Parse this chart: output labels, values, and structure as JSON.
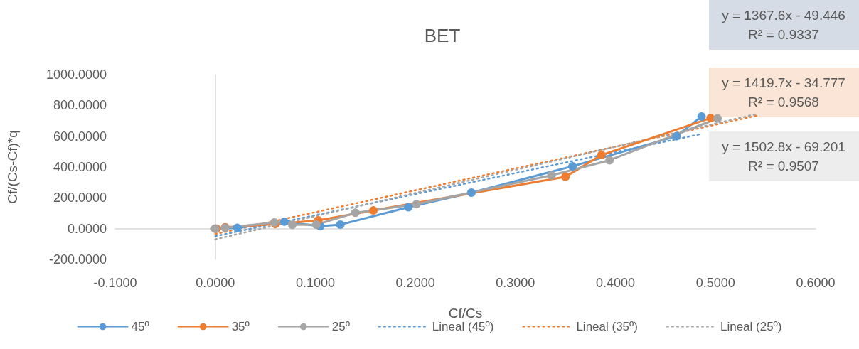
{
  "chart_data": {
    "type": "line",
    "title": "BET",
    "xlabel": "Cf/Cs",
    "ylabel": "Cf/(Cs-Cf)*q",
    "xlim": [
      -0.1,
      0.6
    ],
    "xticks": [
      {
        "value": -0.1,
        "label": "-0.1000"
      },
      {
        "value": 0,
        "label": "0.0000"
      },
      {
        "value": 0.1,
        "label": "0.1000"
      },
      {
        "value": 0.2,
        "label": "0.2000"
      },
      {
        "value": 0.3,
        "label": "0.3000"
      },
      {
        "value": 0.4,
        "label": "0.4000"
      },
      {
        "value": 0.5,
        "label": "0.5000"
      },
      {
        "value": 0.6,
        "label": "0.6000"
      }
    ],
    "ylim": [
      -200,
      1000
    ],
    "yticks": [
      {
        "value": -200,
        "label": "-200.0000"
      },
      {
        "value": 0,
        "label": "0.0000"
      },
      {
        "value": 200,
        "label": "200.0000"
      },
      {
        "value": 400,
        "label": "400.0000"
      },
      {
        "value": 600,
        "label": "600.0000"
      },
      {
        "value": 800,
        "label": "800.0000"
      },
      {
        "value": 1000,
        "label": "1000.0000"
      }
    ],
    "legend": "bottom",
    "marker": "circle",
    "line_style": "solid",
    "series": [
      {
        "name": "45º",
        "color": "#5b9bd5",
        "x": [
          0,
          0.022,
          0.069,
          0.105,
          0.125,
          0.193,
          0.256,
          0.357,
          0.461,
          0.486
        ],
        "values": [
          0,
          5,
          45,
          16,
          26,
          139,
          234,
          405,
          600,
          728
        ]
      },
      {
        "name": "35º",
        "color": "#ed7d31",
        "x": [
          0,
          0.0013,
          0.0098,
          0.06,
          0.103,
          0.158,
          0.35,
          0.386,
          0.495
        ],
        "values": [
          0,
          0,
          9,
          30,
          54,
          118,
          337,
          478,
          718
        ]
      },
      {
        "name": "25º",
        "color": "#a5a5a5",
        "x": [
          0,
          0.0098,
          0.059,
          0.077,
          0.101,
          0.14,
          0.201,
          0.336,
          0.394,
          0.502
        ],
        "values": [
          0,
          5,
          40,
          25,
          26,
          103,
          159,
          346,
          444,
          715
        ]
      },
      {
        "name": "Lineal (45º)",
        "type": "line",
        "color": "#5b9bd5",
        "marker": "none",
        "line_style": "dotted",
        "x": [
          0,
          0.486
        ],
        "values": [
          -49,
          615
        ]
      },
      {
        "name": "Lineal (35º)",
        "type": "line",
        "color": "#ed7d31",
        "marker": "none",
        "line_style": "dotted",
        "x": [
          0,
          0.541
        ],
        "values": [
          -35,
          733
        ]
      },
      {
        "name": "Lineal (25º)",
        "type": "line",
        "color": "#a5a5a5",
        "marker": "none",
        "line_style": "dotted",
        "x": [
          0,
          0.541
        ],
        "values": [
          -69,
          744
        ]
      }
    ],
    "annotations": [
      "y = 1367.6x - 49.446\nR² = 0.9337",
      "y = 1419.7x - 34.777\nR² = 0.9568",
      "y = 1502.8x - 69.201\nR² = 0.9507"
    ]
  }
}
